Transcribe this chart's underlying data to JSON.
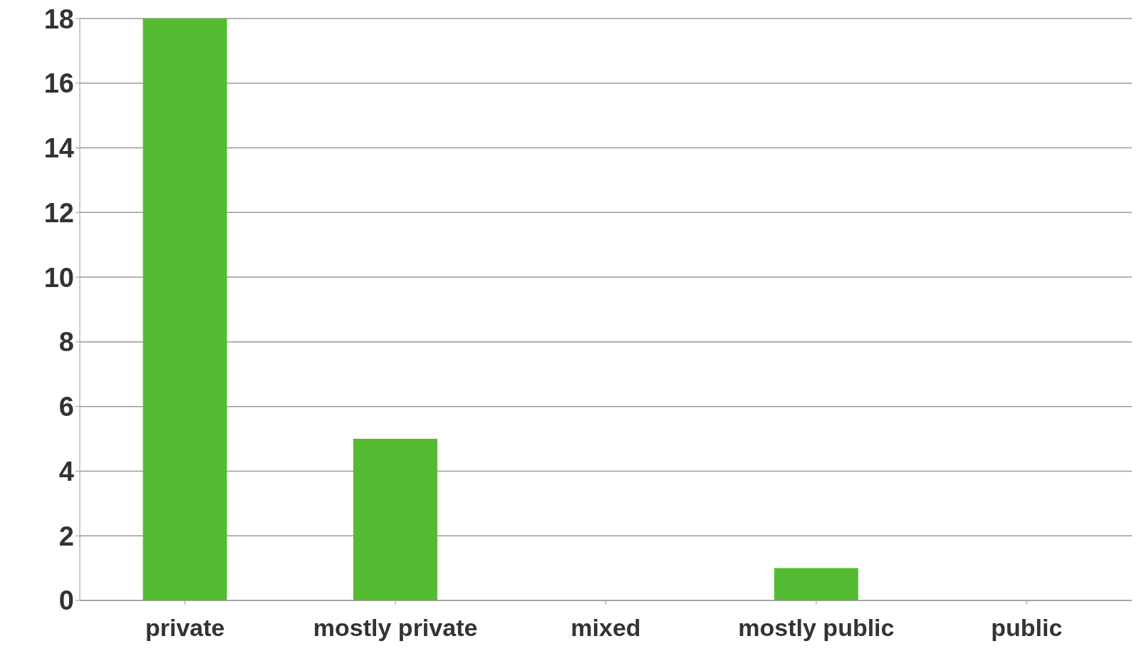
{
  "chart_data": {
    "type": "bar",
    "categories": [
      "private",
      "mostly private",
      "mixed",
      "mostly public",
      "public"
    ],
    "values": [
      18,
      5,
      0,
      1,
      0
    ],
    "color": "#55bb33",
    "ylim": [
      0,
      18
    ],
    "yticks": [
      0,
      2,
      4,
      6,
      8,
      10,
      12,
      14,
      16,
      18
    ],
    "grid": "y"
  }
}
